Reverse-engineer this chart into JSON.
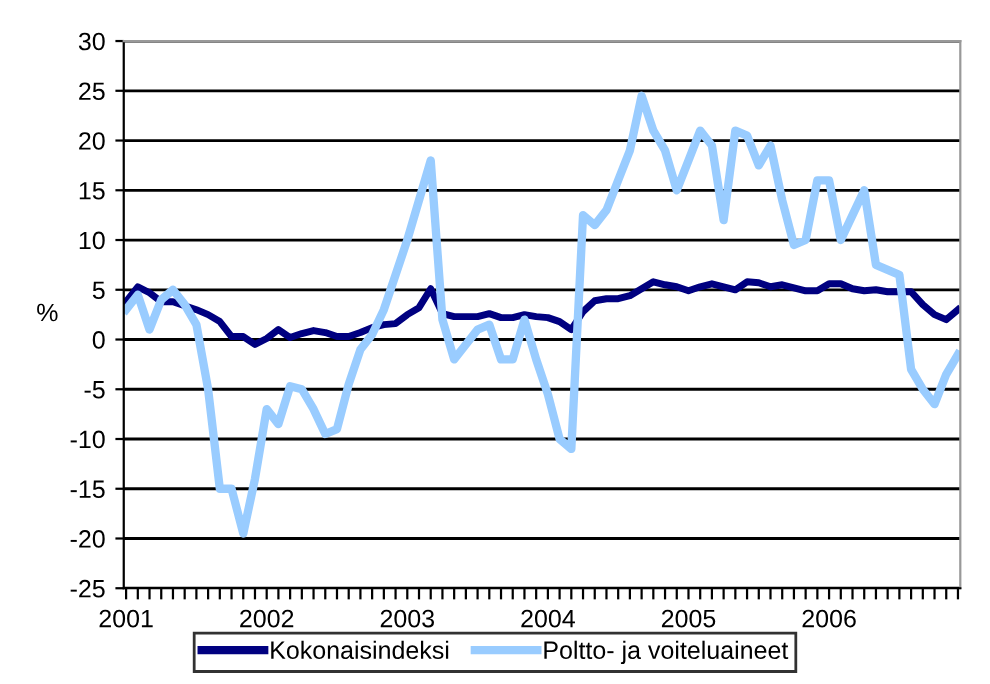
{
  "chart_data": {
    "type": "line",
    "ylabel": "%",
    "categories": [
      "2001",
      null,
      null,
      null,
      null,
      null,
      null,
      null,
      null,
      null,
      null,
      null,
      "2002",
      null,
      null,
      null,
      null,
      null,
      null,
      null,
      null,
      null,
      null,
      null,
      "2003",
      null,
      null,
      null,
      null,
      null,
      null,
      null,
      null,
      null,
      null,
      null,
      "2004",
      null,
      null,
      null,
      null,
      null,
      null,
      null,
      null,
      null,
      null,
      null,
      "2005",
      null,
      null,
      null,
      null,
      null,
      null,
      null,
      null,
      null,
      null,
      null,
      "2006",
      null,
      null,
      null,
      null,
      null,
      null,
      null,
      null,
      null,
      null,
      null
    ],
    "series": [
      {
        "name": "Kokonaisindeksi",
        "color": "#000080",
        "values": [
          3.8,
          5.3,
          4.7,
          3.8,
          3.8,
          3.4,
          3.0,
          2.5,
          1.8,
          0.3,
          0.3,
          -0.5,
          0.1,
          1.0,
          0.2,
          0.6,
          0.9,
          0.7,
          0.3,
          0.3,
          0.7,
          1.2,
          1.5,
          1.6,
          2.5,
          3.2,
          5.1,
          2.6,
          2.3,
          2.3,
          2.3,
          2.6,
          2.2,
          2.2,
          2.5,
          2.3,
          2.2,
          1.8,
          1.0,
          2.8,
          3.9,
          4.1,
          4.1,
          4.4,
          5.1,
          5.8,
          5.5,
          5.3,
          4.9,
          5.3,
          5.6,
          5.3,
          5.0,
          5.8,
          5.7,
          5.3,
          5.5,
          5.2,
          4.9,
          4.9,
          5.6,
          5.6,
          5.1,
          4.9,
          5.0,
          4.8,
          4.8,
          4.8,
          3.5,
          2.5,
          2.0,
          3.0
        ]
      },
      {
        "name": "Poltto- ja voiteluaineet",
        "color": "#99ccff",
        "values": [
          3,
          4.5,
          1,
          4,
          5,
          3.5,
          1.5,
          -5,
          -15,
          -15,
          -19.5,
          -14,
          -7,
          -8.5,
          -4.7,
          -5,
          -7,
          -9.5,
          -9,
          -4.5,
          -1,
          0.5,
          3,
          6.5,
          10,
          14,
          18,
          2,
          -2,
          -0.5,
          1,
          1.5,
          -2,
          -2,
          2,
          -2,
          -5.5,
          -10,
          -11,
          12.5,
          11.5,
          13,
          16,
          19,
          24.5,
          21,
          19,
          15,
          18,
          21,
          19.5,
          12,
          21,
          20.5,
          17.5,
          19.5,
          14,
          9.5,
          10,
          16,
          16,
          10,
          12.5,
          15,
          7.5,
          7,
          6.5,
          -3,
          -5,
          -6.5,
          -3.5,
          -1.5
        ]
      }
    ],
    "ylim": [
      -25,
      30
    ],
    "yticks": [
      -25,
      -20,
      -15,
      -10,
      -5,
      0,
      5,
      10,
      15,
      20,
      25,
      30
    ],
    "grid": "y",
    "legend": "bottom"
  }
}
